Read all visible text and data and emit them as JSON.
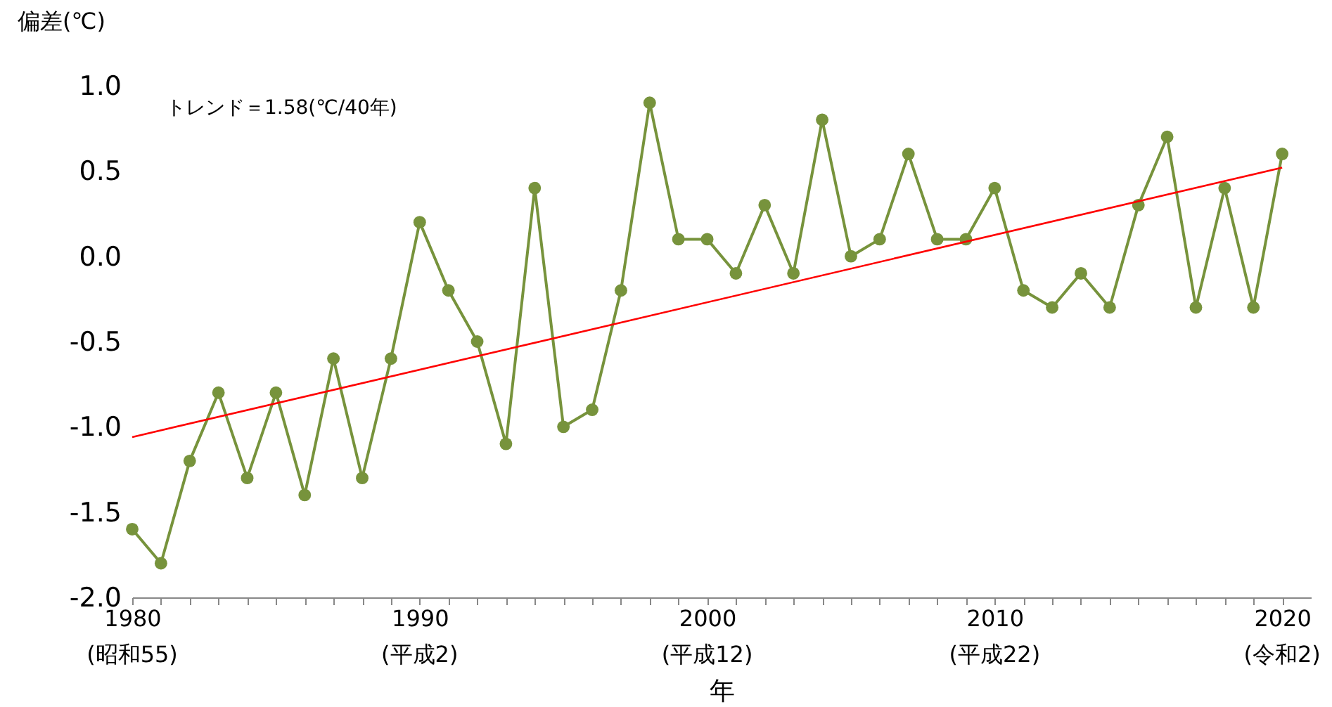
{
  "chart_data": {
    "type": "line",
    "xlabel": "年",
    "ylabel": "偏差(℃)",
    "annotations": [
      "トレンド＝1.58(℃/40年)",
      "(昭和55)",
      "(平成2)",
      "(平成12)",
      "(平成22)",
      "(令和2)"
    ],
    "x": [
      1980,
      1981,
      1982,
      1983,
      1984,
      1985,
      1986,
      1987,
      1988,
      1989,
      1990,
      1991,
      1992,
      1993,
      1994,
      1995,
      1996,
      1997,
      1998,
      1999,
      2000,
      2001,
      2002,
      2003,
      2004,
      2005,
      2006,
      2007,
      2008,
      2009,
      2010,
      2011,
      2012,
      2013,
      2014,
      2015,
      2016,
      2017,
      2018,
      2019,
      2020
    ],
    "series": [
      {
        "color": "#77933c",
        "marker": "circle",
        "values": [
          -1.6,
          -1.8,
          -1.2,
          -0.8,
          -1.3,
          -0.8,
          -1.4,
          -0.6,
          -1.3,
          -0.6,
          0.2,
          -0.2,
          -0.5,
          -1.1,
          0.4,
          -1.0,
          -0.9,
          -0.2,
          0.9,
          0.1,
          0.1,
          -0.1,
          0.3,
          -0.1,
          0.8,
          0.0,
          0.1,
          0.6,
          0.1,
          0.1,
          0.4,
          -0.2,
          -0.3,
          -0.1,
          -0.3,
          0.3,
          0.7,
          -0.3,
          0.4,
          -0.3,
          0.6
        ]
      },
      {
        "type": "line",
        "color": "#ff0000",
        "marker": "none",
        "x": [
          1980,
          2020
        ],
        "values": [
          -1.06,
          0.52
        ]
      }
    ],
    "xlim": [
      1980,
      2021
    ],
    "xticks": [
      1980,
      {
        "value": 1981,
        "label": null
      },
      {
        "value": 1982,
        "label": null
      },
      {
        "value": 1983,
        "label": null
      },
      {
        "value": 1984,
        "label": null
      },
      {
        "value": 1985,
        "label": null
      },
      {
        "value": 1986,
        "label": null
      },
      {
        "value": 1987,
        "label": null
      },
      {
        "value": 1988,
        "label": null
      },
      {
        "value": 1989,
        "label": null
      },
      1990,
      {
        "value": 1991,
        "label": null
      },
      {
        "value": 1992,
        "label": null
      },
      {
        "value": 1993,
        "label": null
      },
      {
        "value": 1994,
        "label": null
      },
      {
        "value": 1995,
        "label": null
      },
      {
        "value": 1996,
        "label": null
      },
      {
        "value": 1997,
        "label": null
      },
      {
        "value": 1998,
        "label": null
      },
      {
        "value": 1999,
        "label": null
      },
      2000,
      {
        "value": 2001,
        "label": null
      },
      {
        "value": 2002,
        "label": null
      },
      {
        "value": 2003,
        "label": null
      },
      {
        "value": 2004,
        "label": null
      },
      {
        "value": 2005,
        "label": null
      },
      {
        "value": 2006,
        "label": null
      },
      {
        "value": 2007,
        "label": null
      },
      {
        "value": 2008,
        "label": null
      },
      {
        "value": 2009,
        "label": null
      },
      2010,
      {
        "value": 2011,
        "label": null
      },
      {
        "value": 2012,
        "label": null
      },
      {
        "value": 2013,
        "label": null
      },
      {
        "value": 2014,
        "label": null
      },
      {
        "value": 2015,
        "label": null
      },
      {
        "value": 2016,
        "label": null
      },
      {
        "value": 2017,
        "label": null
      },
      {
        "value": 2018,
        "label": null
      },
      {
        "value": 2019,
        "label": null
      },
      2020
    ],
    "ylim": [
      -2.0,
      1.0
    ],
    "yticks": [
      {
        "value": -2.0,
        "label": "-2.0"
      },
      {
        "value": -1.5,
        "label": "-1.5"
      },
      {
        "value": -1.0,
        "label": "-1.0"
      },
      {
        "value": -0.5,
        "label": "-0.5"
      },
      {
        "value": 0.0,
        "label": "0.0"
      },
      {
        "value": 0.5,
        "label": "0.5"
      },
      {
        "value": 1.0,
        "label": "1.0"
      }
    ]
  }
}
